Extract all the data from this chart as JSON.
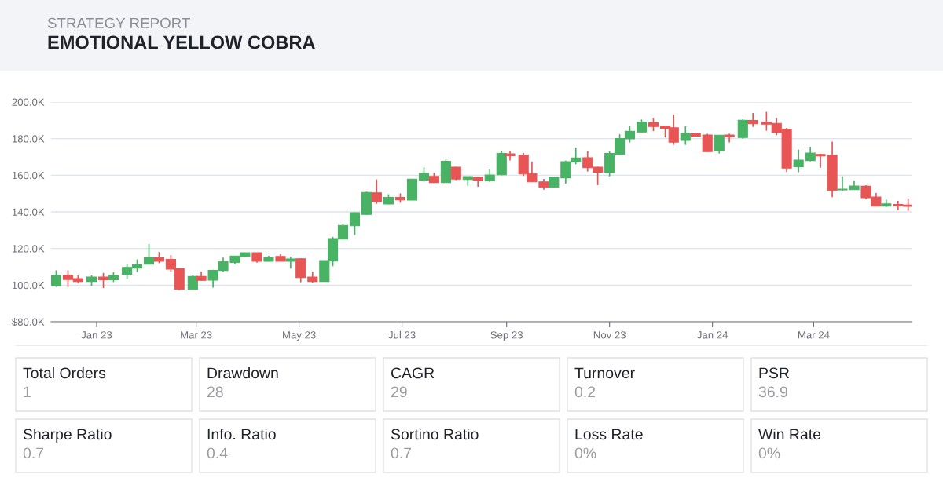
{
  "chart_data": [
    {
      "type": "candlestick",
      "title": "STRATEGY REPORT",
      "subtitle": "EMOTIONAL YELLOW COBRA",
      "x": [
        "2022-12-08",
        "2022-12-15",
        "2022-12-21",
        "2022-12-29",
        "2023-01-05",
        "2023-01-11",
        "2023-01-19",
        "2023-01-25",
        "2023-02-01",
        "2023-02-07",
        "2023-02-14",
        "2023-02-19",
        "2023-02-27",
        "2023-03-04",
        "2023-03-11",
        "2023-03-17",
        "2023-03-24",
        "2023-03-30",
        "2023-04-06",
        "2023-04-13",
        "2023-04-20",
        "2023-04-26",
        "2023-05-02",
        "2023-05-09",
        "2023-05-16",
        "2023-05-21",
        "2023-05-27",
        "2023-06-03",
        "2023-06-10",
        "2023-06-16",
        "2023-06-23",
        "2023-06-30",
        "2023-07-07",
        "2023-07-14",
        "2023-07-20",
        "2023-07-27",
        "2023-08-02",
        "2023-08-09",
        "2023-08-15",
        "2023-08-22",
        "2023-08-29",
        "2023-09-03",
        "2023-09-11",
        "2023-09-16",
        "2023-09-23",
        "2023-09-29",
        "2023-10-06",
        "2023-10-12",
        "2023-10-19",
        "2023-10-25",
        "2023-11-01",
        "2023-11-07",
        "2023-11-13",
        "2023-11-20",
        "2023-11-27",
        "2023-12-04",
        "2023-12-09",
        "2023-12-16",
        "2023-12-22",
        "2023-12-29",
        "2024-01-05",
        "2024-01-11",
        "2024-01-19",
        "2024-01-25",
        "2024-02-02",
        "2024-02-08",
        "2024-02-14",
        "2024-02-21",
        "2024-02-28",
        "2024-03-05",
        "2024-03-12",
        "2024-03-18",
        "2024-03-25",
        "2024-04-01",
        "2024-04-07",
        "2024-04-13",
        "2024-04-20",
        "2024-04-26"
      ],
      "ohlc": [
        [
          99700,
          108100,
          99000,
          105300
        ],
        [
          105300,
          108100,
          99000,
          103100
        ],
        [
          103600,
          105300,
          101100,
          102000
        ],
        [
          102000,
          105300,
          99700,
          104400
        ],
        [
          104400,
          106700,
          98400,
          103000
        ],
        [
          102900,
          107000,
          101700,
          105300
        ],
        [
          105900,
          111700,
          103300,
          109700
        ],
        [
          109300,
          114000,
          107000,
          111000
        ],
        [
          111400,
          122300,
          111300,
          114900
        ],
        [
          114900,
          118100,
          112000,
          113000
        ],
        [
          114100,
          116400,
          107400,
          108700
        ],
        [
          109000,
          109000,
          97300,
          97700
        ],
        [
          97700,
          105300,
          97700,
          104700
        ],
        [
          104700,
          107400,
          102400,
          102600
        ],
        [
          102700,
          108400,
          98600,
          108100
        ],
        [
          108000,
          115000,
          107100,
          112900
        ],
        [
          112400,
          116000,
          111400,
          115900
        ],
        [
          115600,
          117700,
          115600,
          117700
        ],
        [
          117700,
          117700,
          112300,
          113000
        ],
        [
          113000,
          116000,
          112900,
          115100
        ],
        [
          115700,
          116900,
          113000,
          113000
        ],
        [
          113000,
          115600,
          109000,
          114300
        ],
        [
          114400,
          114600,
          101600,
          104100
        ],
        [
          104400,
          107400,
          101400,
          102000
        ],
        [
          102000,
          113400,
          102000,
          113400
        ],
        [
          113100,
          126400,
          110300,
          125400
        ],
        [
          125100,
          133700,
          125000,
          132600
        ],
        [
          132400,
          139700,
          127400,
          139600
        ],
        [
          138600,
          151000,
          138300,
          150600
        ],
        [
          150400,
          157700,
          144400,
          145600
        ],
        [
          144300,
          149600,
          144100,
          147900
        ],
        [
          147900,
          150100,
          145000,
          146600
        ],
        [
          146400,
          158000,
          146400,
          157900
        ],
        [
          157400,
          164300,
          156400,
          161000
        ],
        [
          159400,
          161300,
          155900,
          156000
        ],
        [
          156000,
          168600,
          155900,
          167600
        ],
        [
          164400,
          164600,
          157300,
          157900
        ],
        [
          157700,
          159300,
          154300,
          159300
        ],
        [
          158900,
          159300,
          153700,
          157300
        ],
        [
          157100,
          163600,
          156300,
          160100
        ],
        [
          160300,
          173400,
          160000,
          171900
        ],
        [
          171700,
          173400,
          168100,
          170700
        ],
        [
          171000,
          172100,
          159600,
          160700
        ],
        [
          160900,
          167300,
          156300,
          156400
        ],
        [
          156400,
          158000,
          152100,
          153400
        ],
        [
          153400,
          159100,
          153400,
          158900
        ],
        [
          158600,
          168000,
          155400,
          167400
        ],
        [
          167300,
          175100,
          166000,
          169400
        ],
        [
          169600,
          173100,
          162000,
          164100
        ],
        [
          164400,
          164600,
          154600,
          161700
        ],
        [
          161400,
          173000,
          159400,
          171900
        ],
        [
          171400,
          182400,
          171400,
          180000
        ],
        [
          179900,
          187100,
          177900,
          184000
        ],
        [
          183600,
          190400,
          183400,
          189100
        ],
        [
          188600,
          191400,
          184100,
          186600
        ],
        [
          186900,
          187100,
          180600,
          185600
        ],
        [
          185900,
          193100,
          176600,
          178100
        ],
        [
          179000,
          186700,
          176600,
          182900
        ],
        [
          182700,
          183300,
          181300,
          181400
        ],
        [
          182000,
          182700,
          172700,
          172900
        ],
        [
          173400,
          182000,
          171900,
          181900
        ],
        [
          182000,
          182600,
          177900,
          180900
        ],
        [
          180600,
          191000,
          179900,
          190000
        ],
        [
          189900,
          194000,
          186400,
          188100
        ],
        [
          189100,
          194600,
          184300,
          187900
        ],
        [
          188300,
          191400,
          181900,
          183300
        ],
        [
          185100,
          185900,
          161700,
          163900
        ],
        [
          164700,
          174000,
          161600,
          168300
        ],
        [
          168000,
          175600,
          167600,
          172100
        ],
        [
          171400,
          171700,
          164100,
          170600
        ],
        [
          170900,
          178400,
          148000,
          151700
        ],
        [
          152000,
          159400,
          151400,
          152400
        ],
        [
          152100,
          157100,
          152000,
          154100
        ],
        [
          154000,
          154600,
          147000,
          147700
        ],
        [
          148100,
          150300,
          143100,
          143100
        ],
        [
          143100,
          146700,
          142700,
          144400
        ],
        [
          144100,
          146000,
          141000,
          143300
        ],
        [
          143700,
          147300,
          140600,
          143000
        ]
      ],
      "colors": [
        "#48b265",
        "#e85555",
        "#e85555",
        "#48b265",
        "#e85555",
        "#48b265",
        "#48b265",
        "#48b265",
        "#48b265",
        "#e85555",
        "#e85555",
        "#e85555",
        "#48b265",
        "#e85555",
        "#48b265",
        "#48b265",
        "#48b265",
        "#48b265",
        "#e85555",
        "#48b265",
        "#e85555",
        "#48b265",
        "#e85555",
        "#e85555",
        "#48b265",
        "#48b265",
        "#48b265",
        "#48b265",
        "#48b265",
        "#e85555",
        "#48b265",
        "#e85555",
        "#48b265",
        "#48b265",
        "#e85555",
        "#48b265",
        "#e85555",
        "#48b265",
        "#e85555",
        "#48b265",
        "#48b265",
        "#e85555",
        "#e85555",
        "#e85555",
        "#e85555",
        "#48b265",
        "#48b265",
        "#48b265",
        "#e85555",
        "#e85555",
        "#48b265",
        "#48b265",
        "#48b265",
        "#48b265",
        "#e85555",
        "#e85555",
        "#e85555",
        "#48b265",
        "#e85555",
        "#e85555",
        "#48b265",
        "#e85555",
        "#48b265",
        "#e85555",
        "#e85555",
        "#e85555",
        "#e85555",
        "#48b265",
        "#48b265",
        "#e85555",
        "#e85555",
        "#48b265",
        "#48b265",
        "#e85555",
        "#e85555",
        "#48b265",
        "#e85555",
        "#e85555"
      ],
      "xlim": [
        "2022-12-05",
        "2024-04-28"
      ],
      "xticks": [
        {
          "value": "2023-01-01",
          "label": "Jan 23"
        },
        {
          "value": "2023-03-01",
          "label": "Mar 23"
        },
        {
          "value": "2023-05-01",
          "label": "May 23"
        },
        {
          "value": "2023-07-01",
          "label": "Jul 23"
        },
        {
          "value": "2023-09-01",
          "label": "Sep 23"
        },
        {
          "value": "2023-11-01",
          "label": "Nov 23"
        },
        {
          "value": "2024-01-01",
          "label": "Jan 24"
        },
        {
          "value": "2024-03-01",
          "label": "Mar 24"
        }
      ],
      "ylim": [
        80000,
        200000
      ],
      "yticks": [
        {
          "value": 80000,
          "label": "$80.0K"
        },
        {
          "value": 100000,
          "label": "100.0K"
        },
        {
          "value": 120000,
          "label": "120.0K"
        },
        {
          "value": 140000,
          "label": "140.0K"
        },
        {
          "value": 160000,
          "label": "160.0K"
        },
        {
          "value": 180000,
          "label": "180.0K"
        },
        {
          "value": 200000,
          "label": "200.0K"
        }
      ],
      "grid": "y"
    },
    {
      "type": "other",
      "categories": [
        "Total Orders",
        "Drawdown",
        "CAGR",
        "Turnover",
        "PSR",
        "Sharpe Ratio",
        "Info. Ratio",
        "Sortino Ratio",
        "Loss Rate",
        "Win Rate"
      ],
      "value_labels": [
        "1",
        "28",
        "29",
        "0.2",
        "36.9",
        "0.7",
        "0.4",
        "0.7",
        "0%",
        "0%"
      ]
    }
  ]
}
